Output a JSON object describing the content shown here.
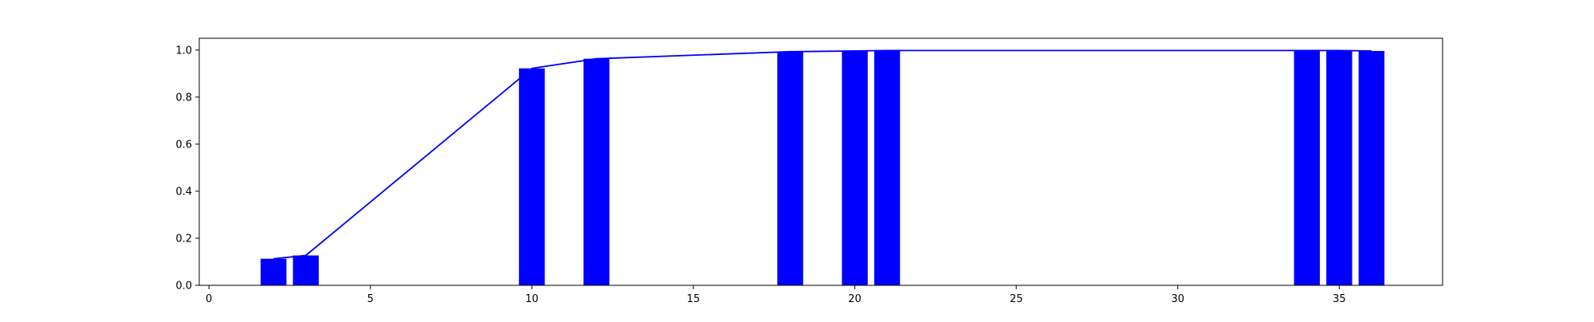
{
  "chart_data": {
    "type": "bar",
    "title": "",
    "xlabel": "",
    "ylabel": "",
    "xlim": [
      -0.3,
      38.2
    ],
    "ylim": [
      0,
      1.05
    ],
    "grid": false,
    "bar_width": 0.8,
    "bar_color": "#0000ff",
    "line_color": "#0000ff",
    "x_ticks": [
      0,
      5,
      10,
      15,
      20,
      25,
      30,
      35
    ],
    "y_ticks": [
      0.0,
      0.2,
      0.4,
      0.6,
      0.8,
      1.0
    ],
    "x_tick_labels": [
      "0",
      "5",
      "10",
      "15",
      "20",
      "25",
      "30",
      "35"
    ],
    "y_tick_labels": [
      "0.0",
      "0.2",
      "0.4",
      "0.6",
      "0.8",
      "1.0"
    ],
    "bars": [
      {
        "x": 2,
        "value": 0.113
      },
      {
        "x": 3,
        "value": 0.127
      },
      {
        "x": 10,
        "value": 0.922
      },
      {
        "x": 12,
        "value": 0.963
      },
      {
        "x": 18,
        "value": 0.993
      },
      {
        "x": 20,
        "value": 0.996
      },
      {
        "x": 21,
        "value": 0.998
      },
      {
        "x": 34,
        "value": 0.998
      },
      {
        "x": 35,
        "value": 0.998
      },
      {
        "x": 36,
        "value": 0.996
      }
    ],
    "line": {
      "x": [
        2,
        3,
        10,
        12,
        18,
        20,
        21,
        34,
        35,
        36
      ],
      "y": [
        0.113,
        0.127,
        0.922,
        0.963,
        0.993,
        0.996,
        0.998,
        0.998,
        0.998,
        0.996
      ]
    }
  }
}
